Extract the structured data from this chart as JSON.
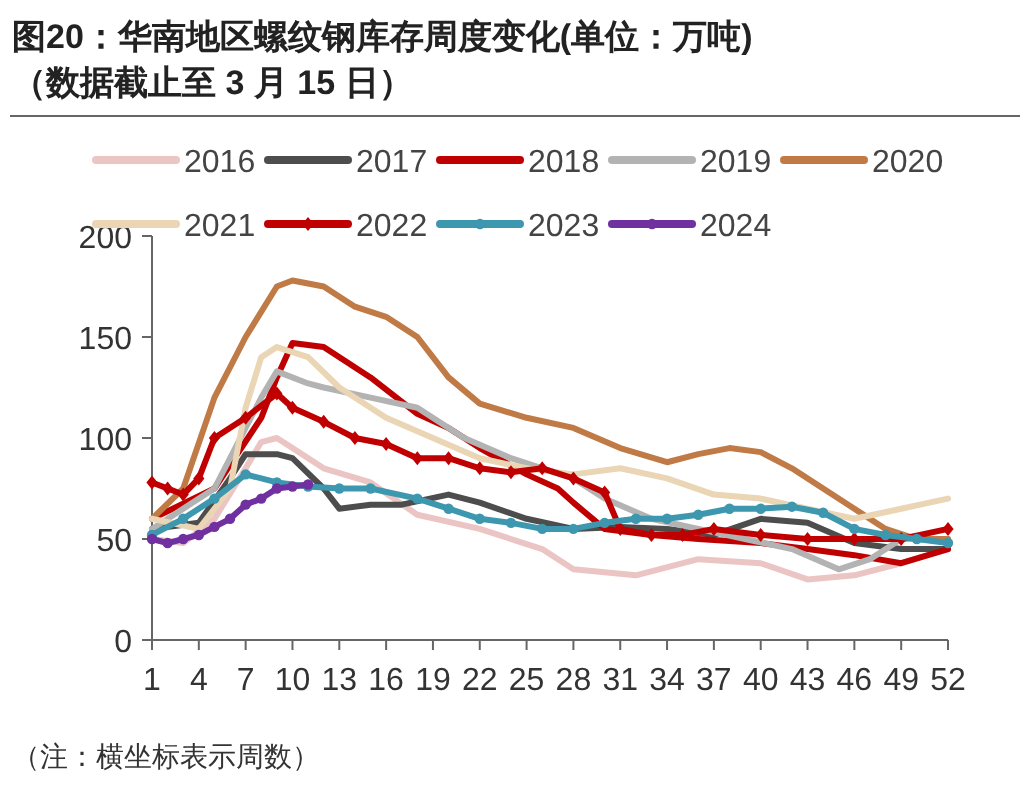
{
  "chart_data": {
    "type": "line",
    "title": "图20：华南地区螺纹钢库存周度变化(单位：万吨)",
    "subtitle": "（数据截止至 3 月 15 日）",
    "annotations": [
      "（注：横坐标表示周数）"
    ],
    "xlim": [
      1,
      52
    ],
    "xticks": [
      1,
      4,
      7,
      10,
      13,
      16,
      19,
      22,
      25,
      28,
      31,
      34,
      37,
      40,
      43,
      46,
      49,
      52
    ],
    "ylim": [
      0,
      200
    ],
    "yticks": [
      0,
      50,
      100,
      150,
      200
    ],
    "legend": "top",
    "grid": false,
    "series": [
      {
        "name": "2016",
        "color": "#ebc4c4",
        "marker": "none",
        "x": [
          1,
          3,
          5,
          7,
          8,
          9,
          10,
          12,
          15,
          18,
          22,
          26,
          28,
          32,
          36,
          40,
          43,
          46,
          49,
          52
        ],
        "values": [
          50,
          48,
          60,
          85,
          98,
          100,
          95,
          85,
          78,
          62,
          55,
          45,
          35,
          32,
          40,
          38,
          30,
          32,
          38,
          45
        ]
      },
      {
        "name": "2017",
        "color": "#4d4d4d",
        "marker": "none",
        "x": [
          1,
          4,
          6,
          7,
          9,
          10,
          12,
          13,
          15,
          17,
          20,
          22,
          25,
          28,
          31,
          34,
          37,
          40,
          43,
          46,
          49,
          52
        ],
        "values": [
          55,
          58,
          80,
          92,
          92,
          90,
          75,
          65,
          67,
          67,
          72,
          68,
          60,
          55,
          56,
          55,
          52,
          60,
          58,
          48,
          45,
          45
        ]
      },
      {
        "name": "2018",
        "color": "#c00000",
        "marker": "none",
        "x": [
          1,
          5,
          8,
          9,
          10,
          12,
          15,
          18,
          20,
          22,
          25,
          27,
          28,
          30,
          33,
          36,
          40,
          43,
          46,
          49,
          52
        ],
        "values": [
          60,
          75,
          110,
          130,
          147,
          145,
          130,
          112,
          105,
          95,
          82,
          75,
          68,
          55,
          52,
          50,
          48,
          45,
          42,
          38,
          45
        ]
      },
      {
        "name": "2019",
        "color": "#b3b3b3",
        "marker": "none",
        "x": [
          1,
          5,
          8,
          9,
          11,
          12,
          15,
          18,
          21,
          24,
          26,
          28,
          30,
          33,
          36,
          39,
          42,
          45,
          47,
          49,
          52
        ],
        "values": [
          55,
          75,
          120,
          133,
          127,
          125,
          120,
          115,
          100,
          90,
          85,
          80,
          70,
          60,
          55,
          50,
          45,
          35,
          40,
          50,
          50
        ]
      },
      {
        "name": "2020",
        "color": "#c07a45",
        "marker": "none",
        "x": [
          1,
          3,
          5,
          7,
          9,
          10,
          12,
          14,
          16,
          18,
          20,
          22,
          25,
          28,
          31,
          34,
          36,
          38,
          40,
          42,
          44,
          46,
          48,
          50,
          52
        ],
        "values": [
          60,
          75,
          120,
          150,
          175,
          178,
          175,
          165,
          160,
          150,
          130,
          117,
          110,
          105,
          95,
          88,
          92,
          95,
          93,
          85,
          75,
          65,
          55,
          50,
          50
        ]
      },
      {
        "name": "2021",
        "color": "#ead5b5",
        "marker": "none",
        "x": [
          1,
          4,
          6,
          7,
          8,
          9,
          11,
          13,
          16,
          19,
          22,
          25,
          28,
          31,
          34,
          37,
          40,
          43,
          46,
          49,
          52
        ],
        "values": [
          60,
          55,
          75,
          115,
          140,
          145,
          140,
          125,
          110,
          100,
          90,
          85,
          82,
          85,
          80,
          72,
          70,
          65,
          60,
          65,
          70
        ]
      },
      {
        "name": "2022",
        "color": "#c00000",
        "marker": "diamond",
        "x": [
          1,
          2,
          3,
          4,
          5,
          7,
          9,
          10,
          12,
          14,
          16,
          18,
          20,
          22,
          24,
          26,
          28,
          30,
          31,
          33,
          35,
          37,
          40,
          43,
          46,
          49,
          52
        ],
        "values": [
          78,
          75,
          72,
          80,
          100,
          110,
          122,
          115,
          108,
          100,
          97,
          90,
          90,
          85,
          83,
          85,
          80,
          73,
          55,
          52,
          52,
          55,
          52,
          50,
          50,
          50,
          55
        ]
      },
      {
        "name": "2023",
        "color": "#3d97ae",
        "marker": "circle",
        "x": [
          1,
          3,
          5,
          7,
          9,
          11,
          13,
          15,
          18,
          20,
          22,
          24,
          26,
          28,
          30,
          32,
          34,
          36,
          38,
          40,
          42,
          44,
          46,
          48,
          50,
          52
        ],
        "values": [
          52,
          60,
          70,
          82,
          78,
          76,
          75,
          75,
          70,
          65,
          60,
          58,
          55,
          55,
          58,
          60,
          60,
          62,
          65,
          65,
          66,
          63,
          55,
          52,
          50,
          48
        ]
      },
      {
        "name": "2024",
        "color": "#7030a0",
        "marker": "circle",
        "x": [
          1,
          2,
          3,
          4,
          5,
          6,
          7,
          8,
          9,
          10,
          11
        ],
        "values": [
          50,
          48,
          50,
          52,
          56,
          60,
          67,
          70,
          75,
          76,
          77
        ]
      }
    ]
  }
}
